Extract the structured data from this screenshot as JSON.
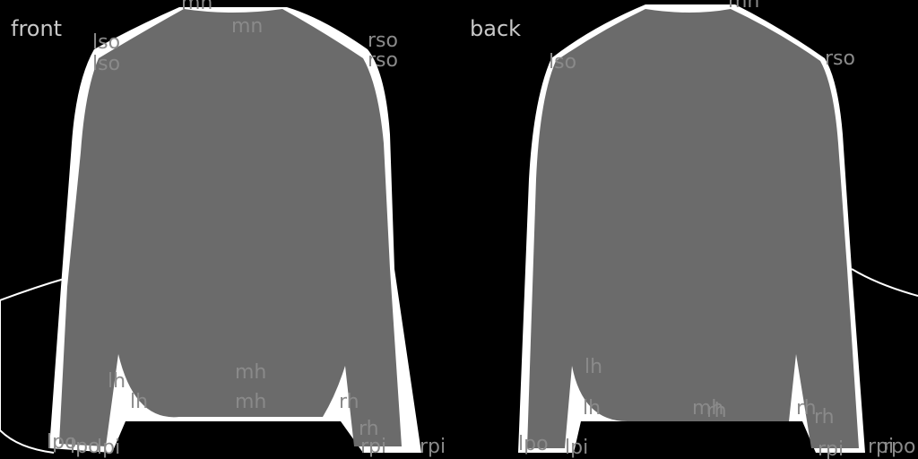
{
  "panels": {
    "front": {
      "title": "front"
    },
    "back": {
      "title": "back"
    }
  },
  "colors": {
    "background": "#000000",
    "garment": "#6b6b6b",
    "outline": "#ffffff",
    "label": "#8a8a8a",
    "title": "#c8c8c8"
  },
  "keypoints": {
    "front": [
      "mn",
      "mn",
      "lso",
      "lso",
      "rso",
      "rso",
      "lh",
      "lh",
      "mh",
      "mh",
      "rh",
      "rh",
      "lpo",
      "lpi",
      "rpi",
      "rpi",
      "lpo"
    ],
    "back": [
      "mn",
      "lso",
      "rso",
      "lh",
      "lh",
      "mh",
      "rh",
      "rh",
      "rh",
      "lpo",
      "lpi",
      "rpi",
      "rpi",
      "rpo"
    ]
  }
}
